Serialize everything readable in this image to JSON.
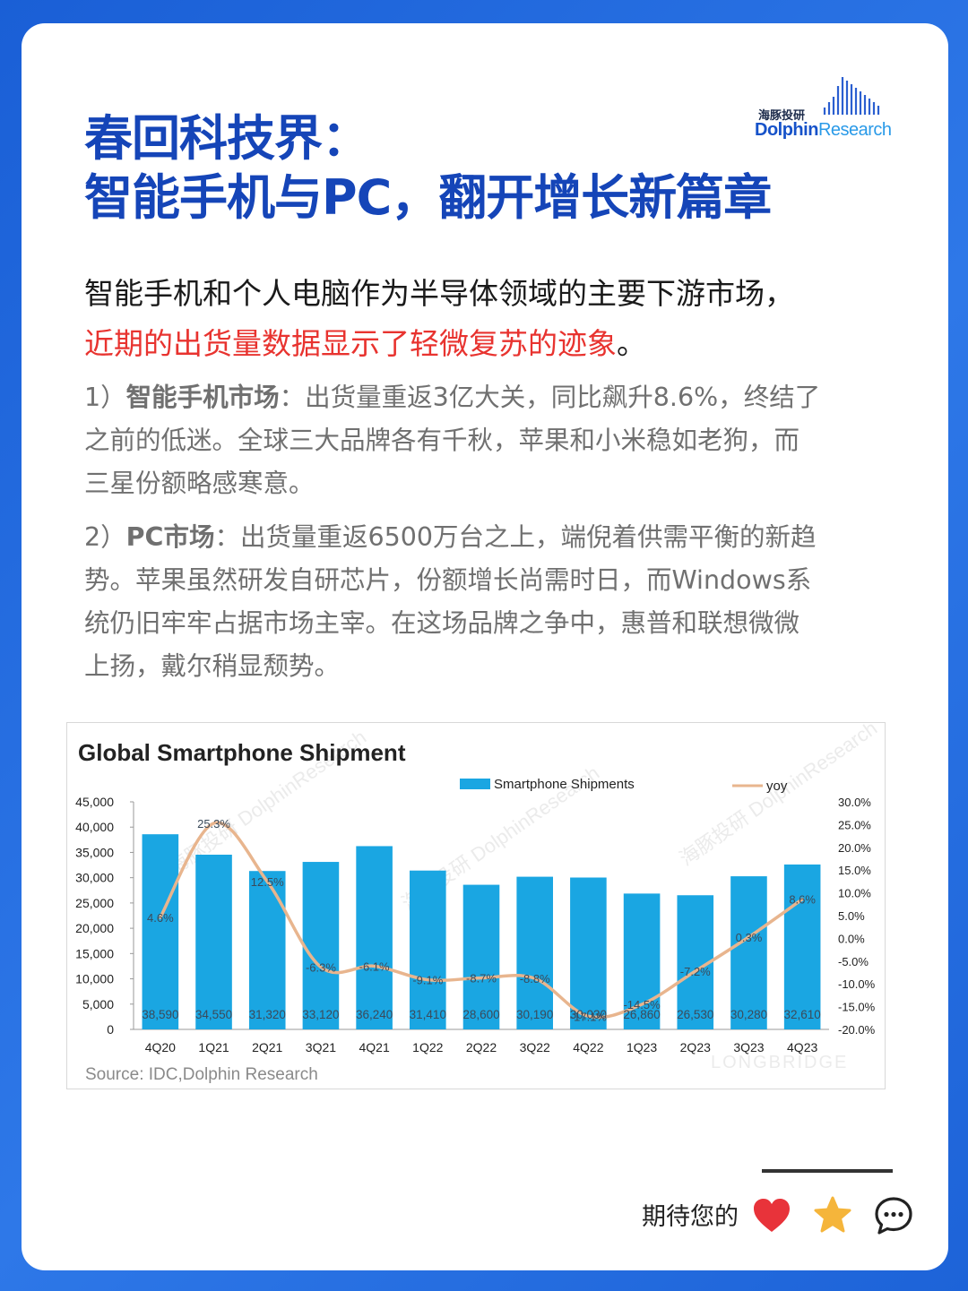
{
  "logo": {
    "cn": "海豚投研",
    "en_a": "Dolphin",
    "en_b": "Research"
  },
  "title": {
    "line1": "春回科技界：",
    "line2": "智能手机与PC，翻开增长新篇章"
  },
  "lead": {
    "line1": "智能手机和个人电脑作为半导体领域的主要下游市场，",
    "line2_red": "近期的出货量数据显示了轻微复苏的迹象",
    "line2_end": "。"
  },
  "para1": {
    "prefix": "1）",
    "bold": "智能手机市场",
    "line1_rest": "：出货量重返3亿大关，同比飙升8.6%，终结了",
    "line2": "之前的低迷。全球三大品牌各有千秋，苹果和小米稳如老狗，而",
    "line3": "三星份额略感寒意。"
  },
  "para2": {
    "prefix": "2）",
    "bold": "PC市场",
    "line1_rest": "：出货量重返6500万台之上，端倪着供需平衡的新趋",
    "line2": "势。苹果虽然研发自研芯片，份额增长尚需时日，而Windows系",
    "line3": "统仍旧牢牢占据市场主宰。在这场品牌之争中，惠普和联想微微",
    "line4": "上扬，戴尔稍显颓势。"
  },
  "chart_data": {
    "type": "bar",
    "title": "Global Smartphone Shipment",
    "categories": [
      "4Q20",
      "1Q21",
      "2Q21",
      "3Q21",
      "4Q21",
      "1Q22",
      "2Q22",
      "3Q22",
      "4Q22",
      "1Q23",
      "2Q23",
      "3Q23",
      "4Q23"
    ],
    "series": [
      {
        "name": "Smartphone Shipments",
        "type": "bar",
        "axis": "left",
        "color": "#1aa6e2",
        "values": [
          38590,
          34550,
          31320,
          33120,
          36240,
          31410,
          28600,
          30190,
          30030,
          26860,
          26530,
          30280,
          32610
        ],
        "labels": [
          "38,590",
          "34,550",
          "31,320",
          "33,120",
          "36,240",
          "31,410",
          "28,600",
          "30,190",
          "30,030",
          "26,860",
          "26,530",
          "30,280",
          "32,610"
        ]
      },
      {
        "name": "yoy",
        "type": "line",
        "axis": "right",
        "color": "#e8b58e",
        "values": [
          4.6,
          25.3,
          12.5,
          -6.3,
          -6.1,
          -9.1,
          -8.7,
          -8.8,
          -17.1,
          -14.5,
          -7.2,
          0.3,
          8.6
        ],
        "labels": [
          "4.6%",
          "25.3%",
          "12.5%",
          "-6.3%",
          "-6.1%",
          "-9.1%",
          "-8.7%",
          "-8.8%",
          "-17.1%",
          "-14.5%",
          "-7.2%",
          "0.3%",
          "8.6%"
        ]
      }
    ],
    "ylim_left": [
      0,
      45000
    ],
    "yticks_left": [
      "45,000",
      "40,000",
      "35,000",
      "30,000",
      "25,000",
      "20,000",
      "15,000",
      "10,000",
      "5,000",
      "0"
    ],
    "ylim_right": [
      -20,
      30
    ],
    "yticks_right": [
      "30.0%",
      "25.0%",
      "20.0%",
      "15.0%",
      "10.0%",
      "5.0%",
      "0.0%",
      "-5.0%",
      "-10.0%",
      "-15.0%",
      "-20.0%"
    ],
    "legend_position": "top",
    "source": "Source: IDC,Dolphin Research",
    "watermarks": [
      "海豚投研 DolphinResearch",
      "LONGBRIDGE"
    ]
  },
  "footer": {
    "text": "期待您的"
  },
  "icons": [
    "heart-icon",
    "star-icon",
    "comment-icon"
  ],
  "colors": {
    "title": "#1545b8",
    "highlight": "#e8332f",
    "heart": "#e8333a",
    "star": "#f5b53b"
  }
}
